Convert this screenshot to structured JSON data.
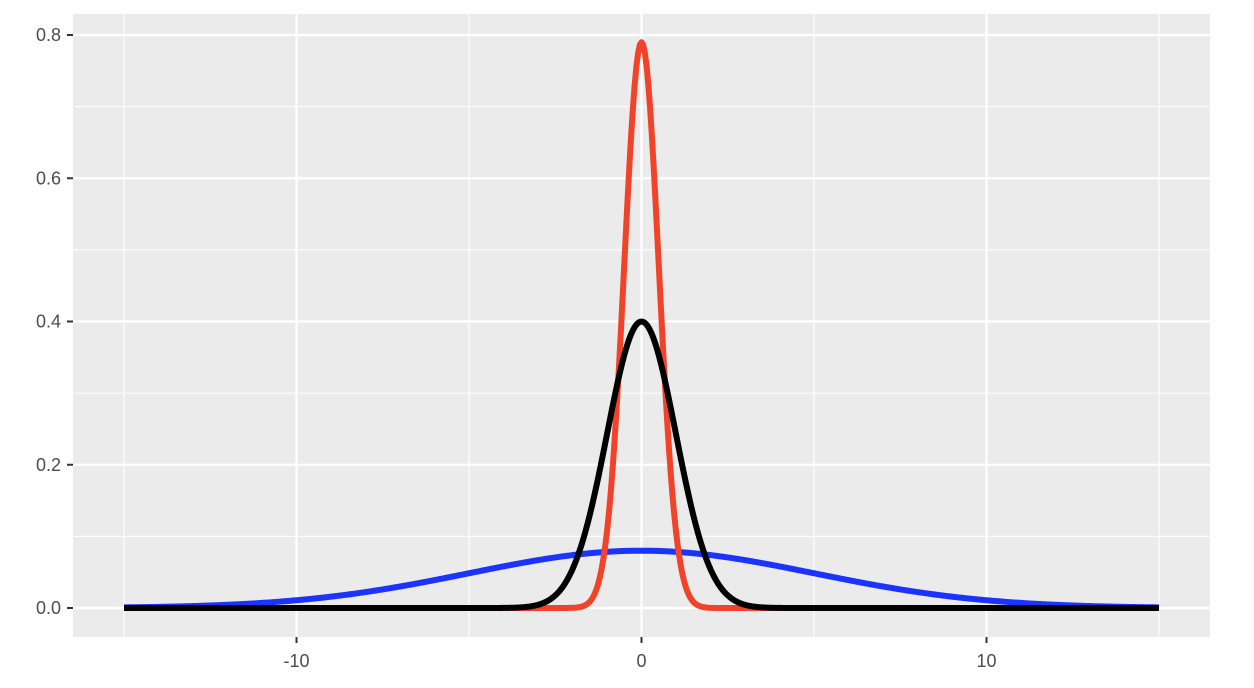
{
  "chart_data": {
    "type": "line",
    "title": "",
    "xlabel": "",
    "ylabel": "",
    "xlim": [
      -15,
      15
    ],
    "ylim": [
      0,
      0.8
    ],
    "x_ticks": [
      -10,
      0,
      10
    ],
    "x_tick_labels": [
      "-10",
      "0",
      "10"
    ],
    "y_ticks": [
      0,
      0.2,
      0.4,
      0.6,
      0.8
    ],
    "y_tick_labels": [
      "0.0",
      "0.2",
      "0.4",
      "0.6",
      "0.8"
    ],
    "grid": true,
    "legend": "none",
    "panel_background": "#ebebeb",
    "grid_color": "#ffffff",
    "x_sample_range": [
      -15,
      15
    ],
    "series": [
      {
        "distribution": "normal",
        "mean": 0,
        "sd": 5,
        "peak": 0.08,
        "color": "#1a33ff"
      },
      {
        "distribution": "normal",
        "mean": 0,
        "sd": 0.5,
        "peak": 0.79,
        "color": "#f0432a"
      },
      {
        "distribution": "normal",
        "mean": 0,
        "sd": 1,
        "peak": 0.4,
        "color": "#000000"
      }
    ]
  }
}
